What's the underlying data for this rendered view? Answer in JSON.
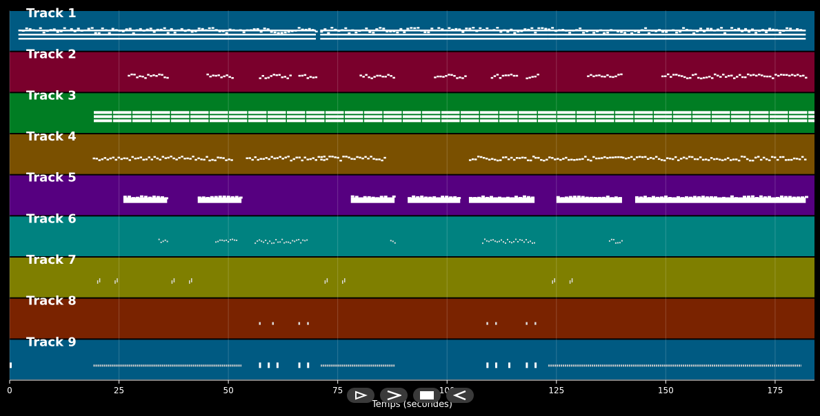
{
  "chart_data": {
    "type": "piano-roll",
    "xlabel": "Temps (secondes)",
    "xlim": [
      0,
      184
    ],
    "xticks": [
      0,
      25,
      50,
      75,
      100,
      125,
      150,
      175
    ],
    "grid": true,
    "tracks": [
      {
        "name": "Track 1",
        "color": "#005a82",
        "pattern": "dense-melody",
        "segments": [
          [
            2,
            70
          ],
          [
            71,
            123
          ],
          [
            123,
            182
          ]
        ]
      },
      {
        "name": "Track 2",
        "color": "#7a002c",
        "pattern": "phrases",
        "segments": [
          [
            27,
            36
          ],
          [
            45,
            51
          ],
          [
            57,
            64
          ],
          [
            66,
            70
          ],
          [
            80,
            88
          ],
          [
            97,
            104
          ],
          [
            110,
            116
          ],
          [
            118,
            121
          ],
          [
            132,
            140
          ],
          [
            149,
            182
          ]
        ]
      },
      {
        "name": "Track 3",
        "color": "#007d23",
        "pattern": "chords",
        "segments": [
          [
            19,
            184
          ]
        ]
      },
      {
        "name": "Track 4",
        "color": "#7a5000",
        "pattern": "melody",
        "segments": [
          [
            19,
            36
          ],
          [
            36,
            51
          ],
          [
            54,
            72
          ],
          [
            71,
            86
          ],
          [
            105,
            120
          ],
          [
            120,
            140
          ],
          [
            140,
            182
          ]
        ]
      },
      {
        "name": "Track 5",
        "color": "#560080",
        "pattern": "blocks",
        "segments": [
          [
            26,
            36
          ],
          [
            43,
            53
          ],
          [
            78,
            88
          ],
          [
            91,
            103
          ],
          [
            105,
            120
          ],
          [
            125,
            140
          ],
          [
            143,
            182
          ]
        ]
      },
      {
        "name": "Track 6",
        "color": "#008280",
        "pattern": "sparse",
        "segments": [
          [
            34,
            36
          ],
          [
            47,
            52
          ],
          [
            56,
            68
          ],
          [
            87,
            88
          ],
          [
            108,
            120
          ],
          [
            137,
            140
          ]
        ]
      },
      {
        "name": "Track 7",
        "color": "#7f7f00",
        "pattern": "ticks",
        "segments": [
          [
            20,
            21
          ],
          [
            24,
            25
          ],
          [
            37,
            38
          ],
          [
            41,
            42
          ],
          [
            72,
            73
          ],
          [
            76,
            77
          ],
          [
            124,
            125
          ],
          [
            128,
            129
          ]
        ]
      },
      {
        "name": "Track 8",
        "color": "#7a2300",
        "pattern": "dots",
        "segments": [
          [
            57,
            58
          ],
          [
            60,
            61
          ],
          [
            66,
            67
          ],
          [
            68,
            69
          ],
          [
            109,
            110
          ],
          [
            111,
            112
          ],
          [
            118,
            119
          ],
          [
            120,
            121
          ]
        ]
      },
      {
        "name": "Track 9",
        "color": "#005a82",
        "pattern": "percussion",
        "segments": [
          [
            0,
            2
          ],
          [
            19,
            53
          ],
          [
            57,
            58
          ],
          [
            59,
            60
          ],
          [
            61,
            62
          ],
          [
            66,
            67
          ],
          [
            68,
            69
          ],
          [
            71,
            88
          ],
          [
            109,
            110
          ],
          [
            111,
            112
          ],
          [
            114,
            115
          ],
          [
            118,
            119
          ],
          [
            120,
            121
          ],
          [
            123,
            181
          ]
        ]
      }
    ]
  },
  "controls": {
    "play_icon": "play-outline-icon",
    "forward_icon": "chevron-right-icon",
    "stop_icon": "stop-icon",
    "rewind_icon": "rewind-icon"
  }
}
